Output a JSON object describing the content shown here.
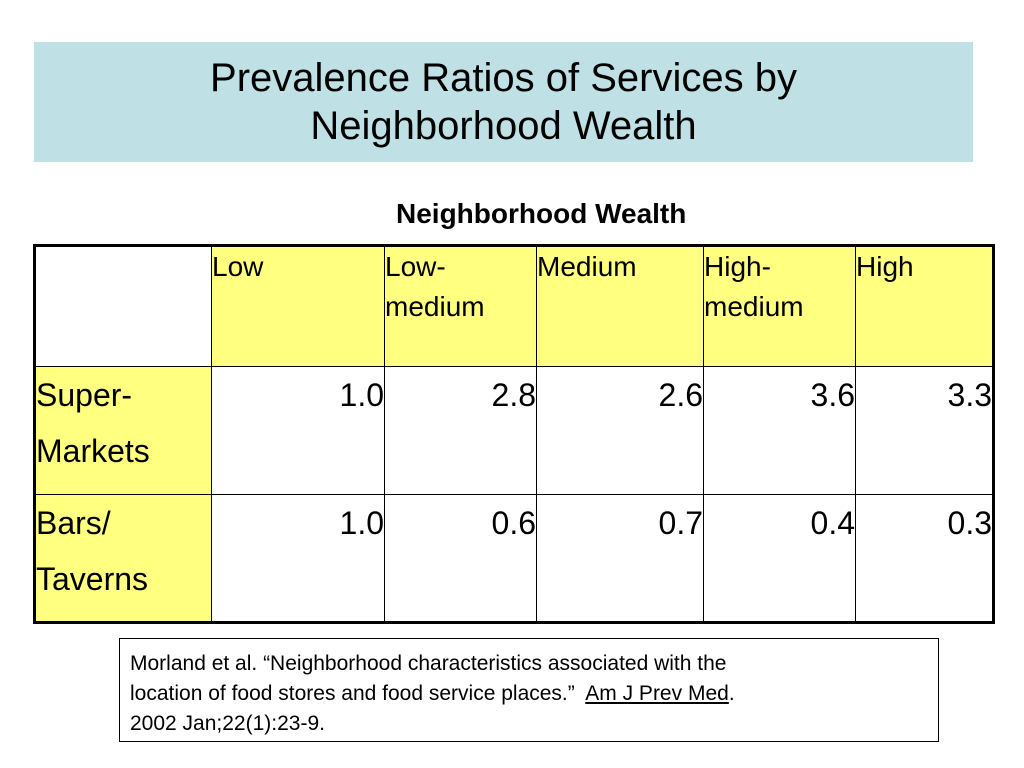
{
  "title": {
    "line1": "Prevalence Ratios of Services by",
    "line2": "Neighborhood Wealth"
  },
  "subtitle": "Neighborhood Wealth",
  "table": {
    "columns": [
      {
        "line1": "Low",
        "line2": ""
      },
      {
        "line1": "Low-",
        "line2": "medium"
      },
      {
        "line1": "Medium",
        "line2": ""
      },
      {
        "line1": "High-",
        "line2": "medium"
      },
      {
        "line1": "High",
        "line2": ""
      }
    ],
    "rows": [
      {
        "label_line1": "Super-",
        "label_line2": "Markets",
        "values": [
          "1.0",
          "2.8",
          "2.6",
          "3.6",
          "3.3"
        ]
      },
      {
        "label_line1": "Bars/",
        "label_line2": "Taverns",
        "values": [
          "1.0",
          "0.6",
          "0.7",
          "0.4",
          "0.3"
        ]
      }
    ]
  },
  "reference": {
    "line1": "Morland et al. “Neighborhood characteristics associated with the",
    "line2_text": "location of food stores and food service places.”  ",
    "journal": "Am J Prev Med",
    "line2_end": ".",
    "line3": "2002 Jan;22(1):23-9."
  },
  "colors": {
    "title_bg": "#bfe0e4",
    "header_bg": "#ffff80"
  }
}
